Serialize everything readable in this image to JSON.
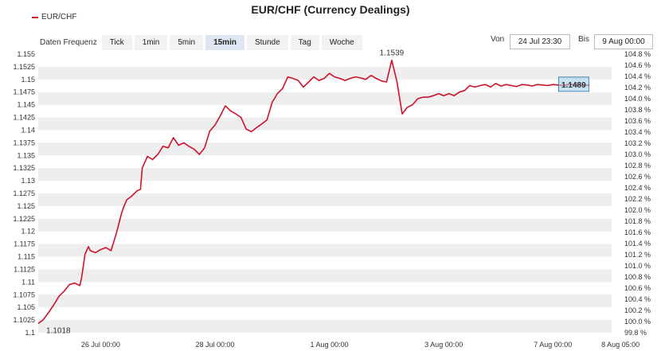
{
  "chart_data": {
    "type": "line",
    "title": "EUR/CHF (Currency Dealings)",
    "series": [
      {
        "name": "EUR/CHF",
        "color": "#d0112b",
        "x": [
          0,
          6,
          12,
          18,
          24,
          30,
          36,
          42,
          48,
          50,
          54,
          58,
          60,
          66,
          72,
          78,
          84,
          90,
          96,
          98,
          102,
          108,
          114,
          118,
          120,
          126,
          132,
          138,
          144,
          150,
          156,
          162,
          168,
          174,
          180,
          186,
          192,
          198,
          204,
          210,
          216,
          222,
          228,
          234,
          240,
          246,
          252,
          258,
          264,
          270,
          276,
          282,
          288,
          294,
          300,
          306,
          312,
          318,
          324,
          330,
          336,
          342,
          348,
          354,
          360,
          366,
          372,
          378,
          384,
          390,
          396,
          402,
          408,
          414,
          420,
          426,
          432,
          438,
          444,
          450,
          456,
          462,
          468,
          474,
          480,
          486,
          492,
          498,
          504,
          510,
          516,
          522,
          528,
          534,
          540,
          546,
          552,
          558,
          564,
          570,
          576,
          582,
          588,
          594,
          600,
          606,
          612,
          618,
          624,
          630,
          636
        ],
        "values": [
          1.1018,
          1.1026,
          1.104,
          1.1055,
          1.1072,
          1.1082,
          1.1095,
          1.1098,
          1.1093,
          1.1108,
          1.1155,
          1.117,
          1.1162,
          1.1158,
          1.1164,
          1.1168,
          1.1162,
          1.1195,
          1.1235,
          1.1245,
          1.1262,
          1.127,
          1.128,
          1.1283,
          1.1325,
          1.1348,
          1.1342,
          1.1352,
          1.1368,
          1.1365,
          1.1385,
          1.137,
          1.1375,
          1.1368,
          1.1362,
          1.1352,
          1.1365,
          1.1398,
          1.141,
          1.1428,
          1.1448,
          1.1438,
          1.1432,
          1.1425,
          1.1402,
          1.1397,
          1.1405,
          1.1412,
          1.142,
          1.1455,
          1.1472,
          1.1482,
          1.1505,
          1.1502,
          1.1498,
          1.1485,
          1.1495,
          1.1505,
          1.1498,
          1.1502,
          1.1512,
          1.1505,
          1.1502,
          1.1498,
          1.1502,
          1.1505,
          1.1503,
          1.15,
          1.1508,
          1.1502,
          1.1497,
          1.1495,
          1.1538,
          1.1495,
          1.1432,
          1.1445,
          1.145,
          1.1462,
          1.1465,
          1.1465,
          1.1468,
          1.1472,
          1.1468,
          1.1472,
          1.1468,
          1.1475,
          1.1478,
          1.1488,
          1.1485,
          1.1488,
          1.149,
          1.1485,
          1.1492,
          1.1487,
          1.149,
          1.1488,
          1.1486,
          1.149,
          1.1489,
          1.1487,
          1.149,
          1.1489,
          1.1488,
          1.149,
          1.1489,
          1.1488,
          1.149,
          1.149,
          1.1489,
          1.1488,
          1.1489
        ]
      }
    ],
    "x_ticks": [
      "26 Jul 00:00",
      "28 Jul 00:00",
      "1 Aug 00:00",
      "3 Aug 00:00",
      "7 Aug 00:00",
      "8 Aug 05:00"
    ],
    "y_ticks_left": [
      "1.1",
      "1.1025",
      "1.105",
      "1.1075",
      "1.11",
      "1.1125",
      "1.115",
      "1.1175",
      "1.12",
      "1.1225",
      "1.125",
      "1.1275",
      "1.13",
      "1.1325",
      "1.135",
      "1.1375",
      "1.14",
      "1.1425",
      "1.145",
      "1.1475",
      "1.15",
      "1.1525",
      "1.155"
    ],
    "y_ticks_right": [
      "99.8 %",
      "100.0 %",
      "100.2 %",
      "100.4 %",
      "100.6 %",
      "100.8 %",
      "101.0 %",
      "101.2 %",
      "101.4 %",
      "101.6 %",
      "101.8 %",
      "102.0 %",
      "102.2 %",
      "102.4 %",
      "102.6 %",
      "102.8 %",
      "103.0 %",
      "103.2 %",
      "103.4 %",
      "103.6 %",
      "103.8 %",
      "104.0 %",
      "104.2 %",
      "104.4 %",
      "104.6 %",
      "104.8 %"
    ],
    "ylim": [
      1.1,
      1.155
    ],
    "ylim_right": [
      99.8,
      104.8
    ],
    "annotations": {
      "low": "1.1018",
      "high": "1.1539",
      "last": "1.1489"
    },
    "grid": true,
    "legend_position": "top-left"
  },
  "ui": {
    "frequency_label": "Daten Frequenz",
    "frequency_options": [
      "Tick",
      "1min",
      "5min",
      "15min",
      "Stunde",
      "Tag",
      "Woche"
    ],
    "frequency_selected": "15min",
    "from_label": "Von",
    "from_value": "24 Jul 23:30",
    "to_label": "Bis",
    "to_value": "9 Aug 00:00"
  },
  "colors": {
    "line": "#d0112b",
    "band": "#eeeeee",
    "accent_label": "#2a8bc9",
    "low_label": "#d0112b",
    "last_label": "#7a1f8a",
    "last_box": "#9fd0ea"
  }
}
